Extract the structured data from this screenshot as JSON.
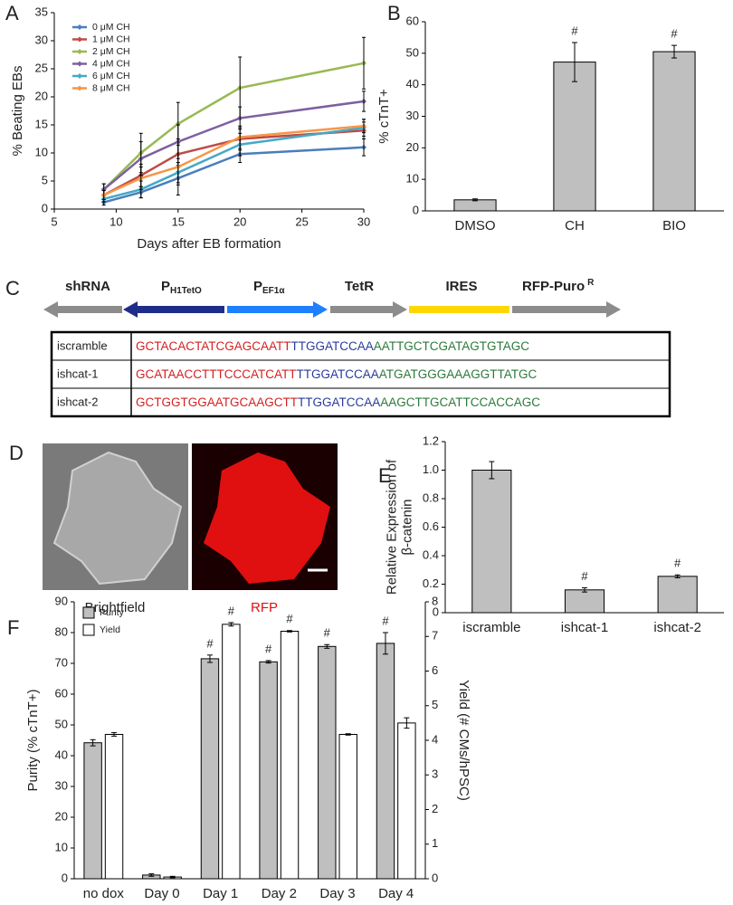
{
  "chart_data": [
    {
      "panel": "A",
      "type": "line",
      "xlabel": "Days after EB formation",
      "ylabel": "% Beating EBs",
      "x": [
        9,
        12,
        15,
        20,
        30
      ],
      "xlim": [
        5,
        30
      ],
      "xticks": [
        5,
        10,
        15,
        20,
        25,
        30
      ],
      "ylim": [
        0,
        35
      ],
      "yticks": [
        0,
        5,
        10,
        15,
        20,
        25,
        30,
        35
      ],
      "legend": "upper left",
      "series": [
        {
          "name": "0 μM CH",
          "color": "#4a7ebb",
          "values": [
            1.2,
            3,
            5.5,
            9.8,
            11
          ],
          "errors": [
            0.5,
            1,
            1.2,
            1.5,
            1.5
          ]
        },
        {
          "name": "1 μM CH",
          "color": "#be4b48",
          "values": [
            2.5,
            6,
            9.8,
            12.5,
            14
          ],
          "errors": [
            0.8,
            2,
            2,
            2,
            1.5
          ]
        },
        {
          "name": "2 μM CH",
          "color": "#98b954",
          "values": [
            3.5,
            10,
            15.2,
            21.6,
            26
          ],
          "errors": [
            1,
            3.5,
            3.8,
            5.5,
            4.6
          ]
        },
        {
          "name": "4 μM CH",
          "color": "#7d60a0",
          "values": [
            3.5,
            9,
            12,
            16.2,
            19.2
          ],
          "errors": [
            1,
            3,
            3,
            2,
            1.8
          ]
        },
        {
          "name": "6 μM CH",
          "color": "#46aac5",
          "values": [
            1.8,
            3.5,
            6.5,
            11.5,
            14.5
          ],
          "errors": [
            0.5,
            1.5,
            1.8,
            2,
            1.5
          ]
        },
        {
          "name": "8 μM CH",
          "color": "#f79646",
          "values": [
            2.5,
            5.5,
            7.5,
            12.8,
            14.8
          ],
          "errors": [
            0.8,
            2,
            5,
            2,
            1.2
          ]
        }
      ]
    },
    {
      "panel": "B",
      "type": "bar",
      "ylabel": "% cTnT+",
      "categories": [
        "DMSO",
        "CH",
        "BIO"
      ],
      "values": [
        3.5,
        47.2,
        50.5
      ],
      "errors": [
        0.3,
        6.2,
        2
      ],
      "markers": [
        null,
        "#",
        "#"
      ],
      "color": "#bfbfbf",
      "ylim": [
        0,
        60
      ],
      "yticks": [
        0,
        10,
        20,
        30,
        40,
        50,
        60
      ]
    },
    {
      "panel": "E",
      "type": "bar",
      "ylabel": [
        "Relative Expression of",
        "β-catenin"
      ],
      "categories": [
        "iscramble",
        "ishcat-1",
        "ishcat-2"
      ],
      "values": [
        1.0,
        0.16,
        0.255
      ],
      "errors": [
        0.06,
        0.015,
        0.01
      ],
      "markers": [
        null,
        "#",
        "#"
      ],
      "color": "#bfbfbf",
      "ylim": [
        0,
        1.2
      ],
      "yticks": [
        0,
        0.2,
        0.4,
        0.6,
        0.8,
        {
          "value": 1,
          "label": "1.0"
        },
        1.2
      ]
    },
    {
      "panel": "F",
      "type": "bar",
      "ylabel": "Purity (% cTnT+)",
      "y2label": "Yield (# CMs/hPSC)",
      "categories": [
        "no dox",
        "Day 0",
        "Day 1",
        "Day 2",
        "Day 3",
        "Day 4"
      ],
      "ylim": [
        0,
        90
      ],
      "yticks": [
        0,
        10,
        20,
        30,
        40,
        50,
        60,
        70,
        80,
        90
      ],
      "y2lim": [
        0,
        8
      ],
      "y2ticks": [
        0,
        1,
        2,
        3,
        4,
        5,
        6,
        7,
        8
      ],
      "legend": "upper left",
      "series": [
        {
          "name": "Purity",
          "color": "#bfbfbf",
          "values": [
            44.2,
            1.2,
            71.5,
            70.5,
            75.5,
            76.5
          ],
          "errors": [
            1,
            0.4,
            1.2,
            0.4,
            0.6,
            3.5
          ],
          "markers": [
            null,
            null,
            "#",
            "#",
            "#",
            "#"
          ]
        },
        {
          "name": "Yield",
          "color": "#ffffff",
          "axis": "y2",
          "values": [
            4.17,
            0.05,
            7.35,
            7.15,
            4.17,
            4.5
          ],
          "errors": [
            0.05,
            0.02,
            0.05,
            0.02,
            0.02,
            0.15
          ],
          "markers": [
            null,
            null,
            "#",
            "#",
            null,
            null
          ]
        }
      ]
    }
  ],
  "construct": {
    "panel": "C",
    "elements": [
      {
        "label": "shRNA"
      },
      {
        "label": "P",
        "subscript": "H1TetO"
      },
      {
        "label": "P",
        "subscript": "EF1α"
      },
      {
        "label": "TetR"
      },
      {
        "label": "IRES"
      },
      {
        "label": "RFP-Puro",
        "superscript": "R"
      }
    ],
    "table": {
      "rows": [
        [
          "iscramble",
          "GCTACACTATCGAGCAATT",
          "TTGGATCCAA",
          "AATTGCTCGATAGTGTAGC"
        ],
        [
          "ishcat-1",
          "GCATAACCTTTCCCATCATT",
          "TTGGATCCAA",
          "ATGATGGGAAAGGTTATGC"
        ],
        [
          "ishcat-2",
          "GCTGGTGGAATGCAAGCTT",
          "TTGGATCCAA",
          "AAGCTTGCATTCCACCAGC"
        ]
      ]
    }
  },
  "images": {
    "panel": "D",
    "captions": [
      "Brightfield",
      "RFP"
    ]
  }
}
